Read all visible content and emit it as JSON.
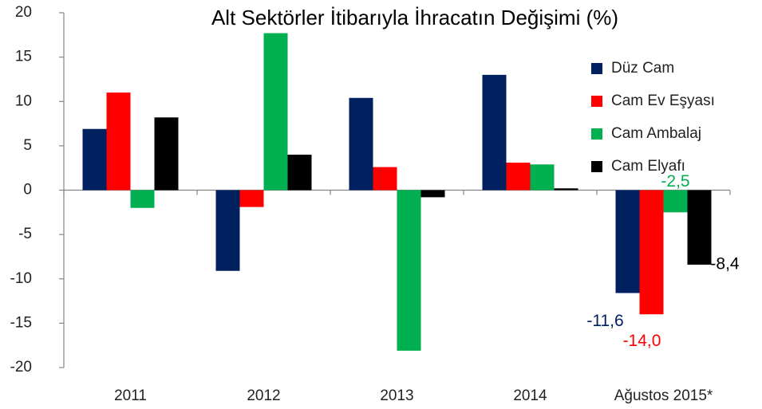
{
  "chart_data": {
    "type": "bar",
    "title": "Alt Sektörler İtibarıyla İhracatın Değişimi (%)",
    "categories": [
      "2011",
      "2012",
      "2013",
      "2014",
      "Ağustos 2015*"
    ],
    "series": [
      {
        "name": "Düz Cam",
        "color": "#002060",
        "values": [
          6.9,
          -9.1,
          10.4,
          13.0,
          -11.6
        ],
        "value_labels": [
          null,
          null,
          null,
          null,
          "-11,6"
        ]
      },
      {
        "name": "Cam Ev Eşyası",
        "color": "#ff0000",
        "values": [
          11.0,
          -1.9,
          2.6,
          3.1,
          -14.0
        ],
        "value_labels": [
          null,
          null,
          null,
          null,
          "-14,0"
        ]
      },
      {
        "name": "Cam Ambalaj",
        "color": "#00b050",
        "values": [
          -2.0,
          17.7,
          -18.1,
          2.9,
          -2.5
        ],
        "value_labels": [
          null,
          null,
          null,
          null,
          "-2,5"
        ]
      },
      {
        "name": "Cam Elyafı",
        "color": "#000000",
        "values": [
          8.2,
          4.0,
          -0.8,
          0.2,
          -8.4
        ],
        "value_labels": [
          null,
          null,
          null,
          null,
          "-8,4"
        ]
      }
    ],
    "ylim": [
      -20,
      20
    ],
    "yticks": [
      -20,
      -15,
      -10,
      -5,
      0,
      5,
      10,
      15,
      20
    ],
    "legend": "right"
  }
}
